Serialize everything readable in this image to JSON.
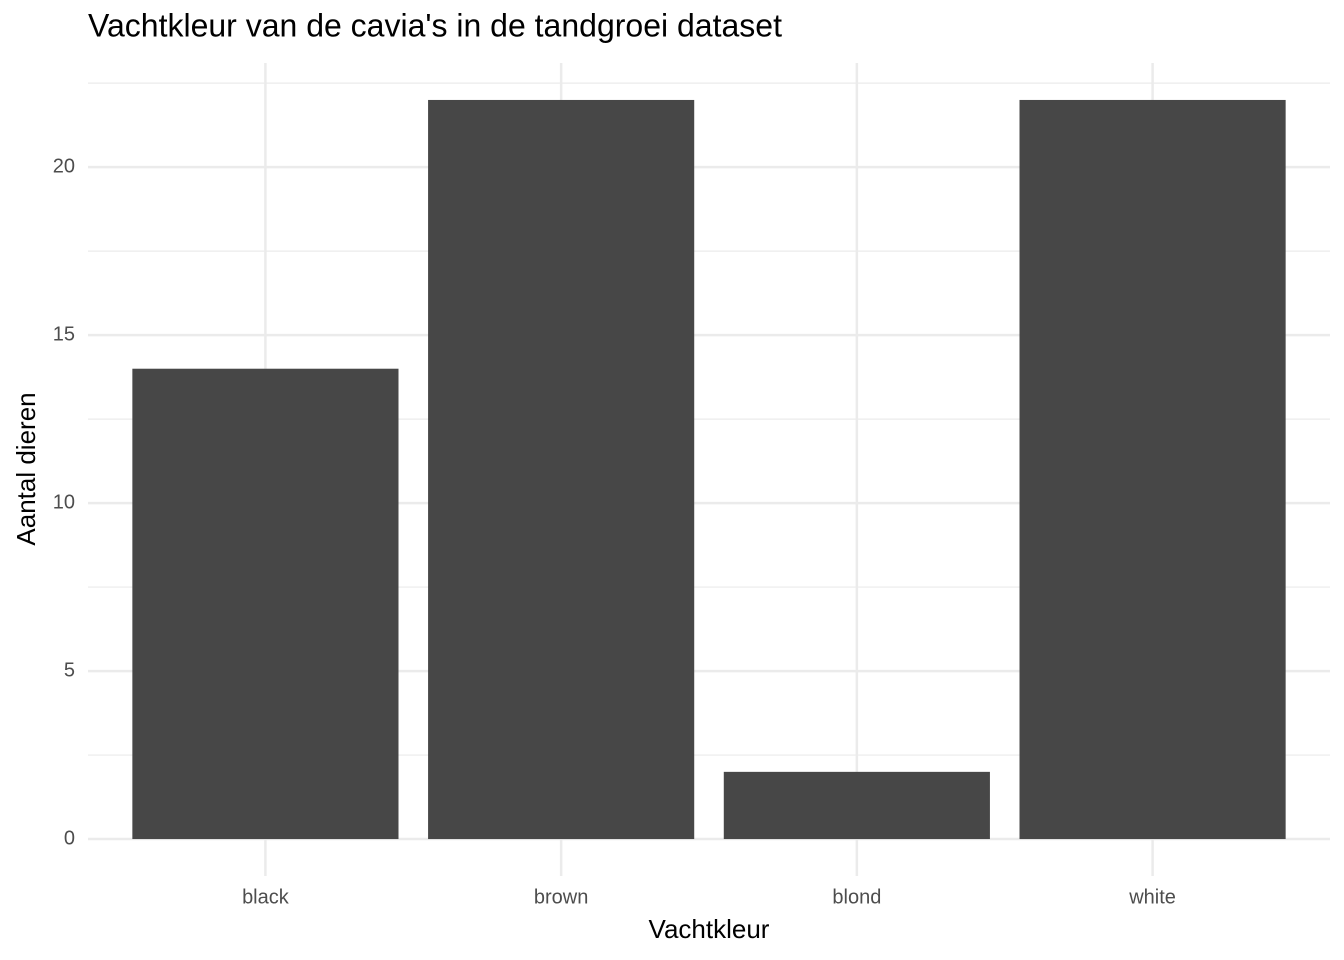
{
  "chart_data": {
    "type": "bar",
    "title": "Vachtkleur van de cavia's in de tandgroei dataset",
    "x_label": "Vachtkleur",
    "y_label": "Aantal dieren",
    "categories": [
      "black",
      "brown",
      "blond",
      "white"
    ],
    "values": [
      14,
      22,
      2,
      22
    ],
    "color": "#474747",
    "ylim": [
      -1.1,
      23.1
    ],
    "yticks": [
      0,
      5,
      10,
      15,
      20
    ],
    "grid": true
  }
}
